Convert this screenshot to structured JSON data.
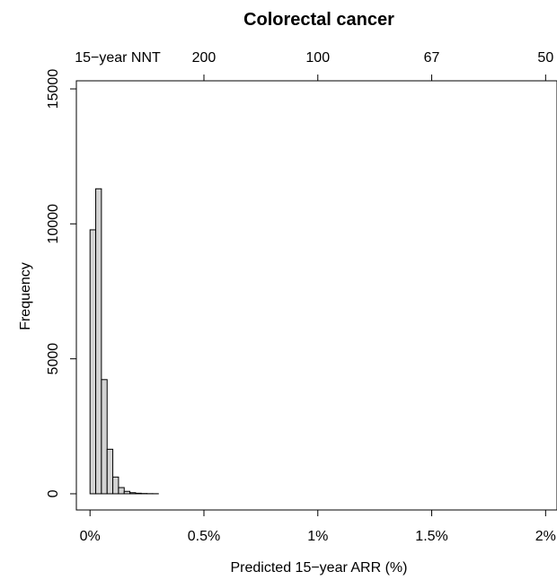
{
  "chart_data": {
    "type": "bar",
    "title": "Colorectal cancer",
    "xlabel": "Predicted 15−year ARR (%)",
    "ylabel": "Frequency",
    "top_axis_label": "15−year NNT",
    "xlim": [
      -0.0006,
      0.0205
    ],
    "ylim": [
      -600,
      15300
    ],
    "x_ticks": [
      {
        "value": 0,
        "label": "0%"
      },
      {
        "value": 0.005,
        "label": "0.5%"
      },
      {
        "value": 0.01,
        "label": "1%"
      },
      {
        "value": 0.015,
        "label": "1.5%"
      },
      {
        "value": 0.02,
        "label": "2%"
      }
    ],
    "top_ticks": [
      {
        "value": 0.005,
        "label": "200"
      },
      {
        "value": 0.01,
        "label": "100"
      },
      {
        "value": 0.015,
        "label": "67"
      },
      {
        "value": 0.02,
        "label": "50"
      }
    ],
    "y_ticks": [
      {
        "value": 0,
        "label": "0"
      },
      {
        "value": 5000,
        "label": "5000"
      },
      {
        "value": 10000,
        "label": "10000"
      },
      {
        "value": 15000,
        "label": "15000"
      }
    ],
    "bin_edges": [
      0,
      0.00025,
      0.0005,
      0.00075,
      0.001,
      0.00125,
      0.0015,
      0.00175,
      0.002,
      0.00225,
      0.0025,
      0.00275,
      0.003
    ],
    "values": [
      9780,
      11300,
      4230,
      1650,
      620,
      230,
      90,
      40,
      20,
      10,
      5,
      3
    ],
    "grid": false,
    "legend": "none",
    "bar_color": "#d3d3d3"
  }
}
